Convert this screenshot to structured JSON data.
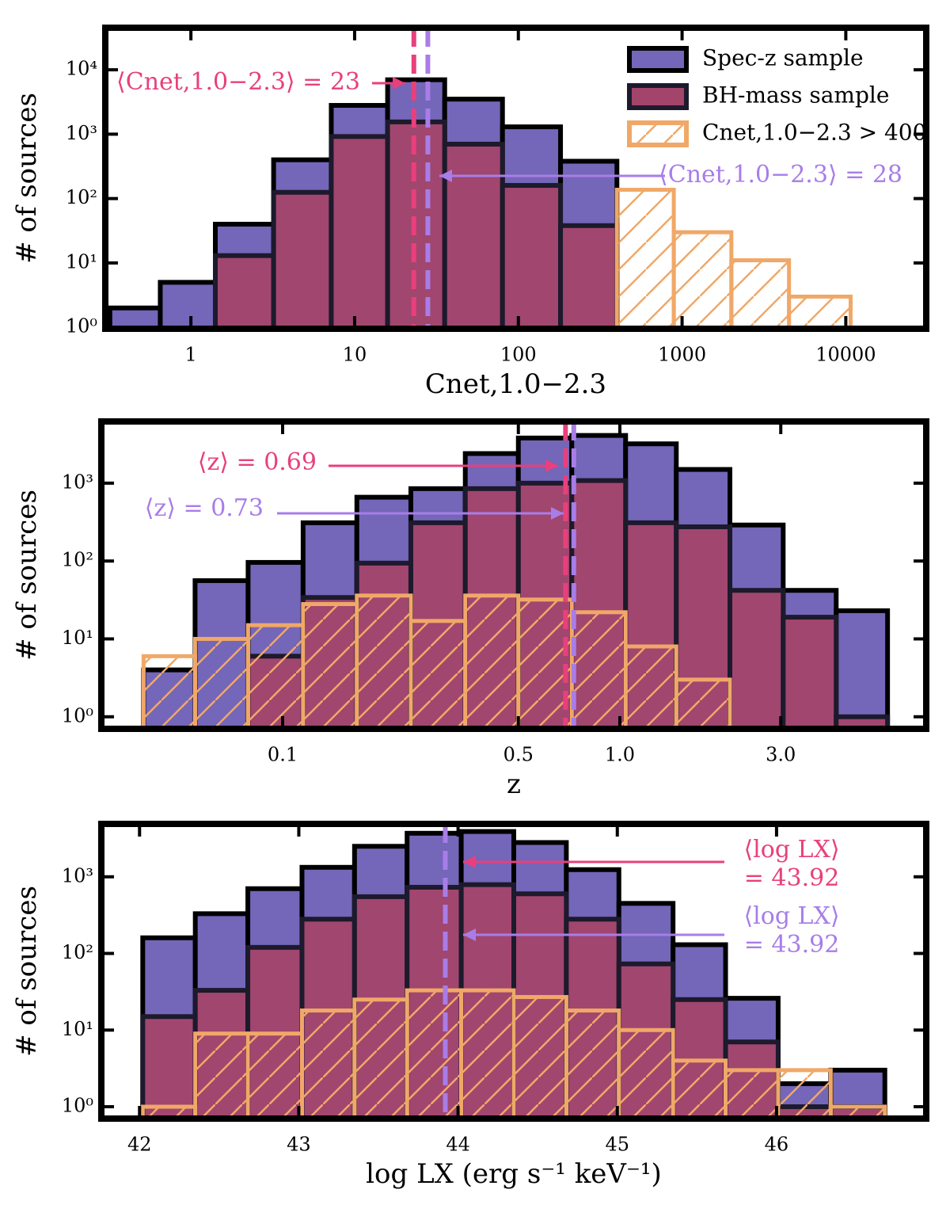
{
  "chart_data": [
    {
      "type": "histogram",
      "xlabel": "Cnet,1.0−2.3",
      "ylabel": "# of sources",
      "xscale": "log",
      "yscale": "log",
      "xlim": [
        0.3,
        31000
      ],
      "xticks": [
        1,
        10,
        100,
        1000,
        10000
      ],
      "ylim": [
        0.95,
        45000
      ],
      "yticks": [
        {
          "value": 1,
          "label": "10⁰"
        },
        {
          "value": 10,
          "label": "10¹"
        },
        {
          "value": 100,
          "label": "10²"
        },
        {
          "value": 1000,
          "label": "10³"
        },
        {
          "value": 10000,
          "label": "10⁴"
        }
      ],
      "legend": "upper right",
      "bins": [
        0.32,
        0.65,
        1.41,
        3.2,
        7.2,
        15.9,
        35.5,
        80,
        181,
        400,
        890,
        2000,
        4500,
        10700
      ],
      "series": [
        {
          "name": "Spec-z sample",
          "color": "#7466b8",
          "values": [
            2,
            5,
            40,
            400,
            2800,
            7000,
            3500,
            1300,
            380,
            0,
            0,
            0,
            0
          ]
        },
        {
          "name": "BH-mass sample",
          "color": "#a3446a",
          "values": [
            0,
            0,
            13,
            125,
            920,
            1550,
            700,
            160,
            38,
            0,
            0,
            0,
            0
          ]
        },
        {
          "name": "Cnet,1.0−2.3 > 400",
          "color": "#f0a868",
          "values": [
            0,
            0,
            0,
            0,
            0,
            0,
            0,
            0,
            0,
            137,
            30,
            11,
            3
          ]
        }
      ],
      "mean_lines": [
        {
          "value": 23,
          "color": "#e8407c",
          "label": [
            "⟨Cnet,1.0−2.3⟩ = 23"
          ]
        },
        {
          "value": 28,
          "color": "#a87de8",
          "label": [
            "⟨Cnet,1.0−2.3⟩ = 28"
          ]
        }
      ]
    },
    {
      "type": "histogram",
      "xlabel": "z",
      "ylabel": "# of sources",
      "xscale": "log",
      "yscale": "log",
      "xlim": [
        0.029,
        8.1
      ],
      "xticks": [
        0.1,
        0.5,
        {
          "value": 1,
          "label": "1.0"
        },
        {
          "value": 3,
          "label": "3.0"
        }
      ],
      "ylim": [
        0.7,
        6200
      ],
      "yticks": [
        {
          "value": 1,
          "label": "10⁰"
        },
        {
          "value": 10,
          "label": "10¹"
        },
        {
          "value": 100,
          "label": "10²"
        },
        {
          "value": 1000,
          "label": "10³"
        }
      ],
      "bins": [
        0.0387,
        0.055,
        0.079,
        0.115,
        0.166,
        0.24,
        0.348,
        0.5,
        0.72,
        1.04,
        1.47,
        2.12,
        3.05,
        4.38,
        6.22
      ],
      "series": [
        {
          "name": "Spec-z sample",
          "color": "#7466b8",
          "values": [
            4,
            56,
            96,
            310,
            660,
            850,
            2400,
            3800,
            4100,
            3200,
            1500,
            290,
            42,
            23
          ]
        },
        {
          "name": "BH-mass sample",
          "color": "#a3446a",
          "values": [
            0,
            0,
            6,
            34,
            94,
            310,
            850,
            1000,
            1080,
            310,
            275,
            42,
            19,
            1
          ]
        },
        {
          "name": "Cnet,1.0−2.3 > 400",
          "color": "#f0a868",
          "values": [
            6,
            10,
            15,
            28,
            36,
            17,
            36,
            32,
            22,
            8,
            3,
            0,
            0,
            0
          ]
        }
      ],
      "mean_lines": [
        {
          "value": 0.69,
          "color": "#e8407c",
          "label": [
            "⟨z⟩ = 0.69"
          ]
        },
        {
          "value": 0.73,
          "color": "#a87de8",
          "label": [
            "⟨z⟩ = 0.73"
          ]
        }
      ]
    },
    {
      "type": "histogram",
      "xlabel": "log LX (erg s⁻¹ keV⁻¹)",
      "ylabel": "# of sources",
      "xscale": "linear",
      "yscale": "log",
      "xlim": [
        41.76,
        46.94
      ],
      "xticks": [
        42,
        43,
        44,
        45,
        46
      ],
      "ylim": [
        0.7,
        4900
      ],
      "yticks": [
        {
          "value": 1,
          "label": "10⁰"
        },
        {
          "value": 10,
          "label": "10¹"
        },
        {
          "value": 100,
          "label": "10²"
        },
        {
          "value": 1000,
          "label": "10³"
        }
      ],
      "bins": [
        42.02,
        42.35,
        42.68,
        43.02,
        43.35,
        43.68,
        44.02,
        44.35,
        44.68,
        45.01,
        45.35,
        45.68,
        46.01,
        46.34,
        46.68
      ],
      "series": [
        {
          "name": "Spec-z sample",
          "color": "#7466b8",
          "values": [
            160,
            330,
            700,
            1330,
            2500,
            3700,
            3900,
            2800,
            1240,
            450,
            130,
            26,
            2,
            3
          ]
        },
        {
          "name": "BH-mass sample",
          "color": "#a3446a",
          "values": [
            15,
            33,
            120,
            280,
            550,
            730,
            790,
            600,
            280,
            73,
            25,
            7,
            1,
            1
          ]
        },
        {
          "name": "Cnet,1.0−2.3 > 400",
          "color": "#f0a868",
          "values": [
            1,
            9,
            9,
            18,
            25,
            33,
            33,
            27,
            18,
            10,
            4,
            3,
            3,
            1
          ]
        }
      ],
      "mean_lines": [
        {
          "value": 43.92,
          "color": "#e8407c",
          "label": [
            "⟨log LX⟩",
            "= 43.92"
          ]
        },
        {
          "value": 43.92,
          "color": "#a87de8",
          "label": [
            "⟨log LX⟩",
            "= 43.92"
          ]
        }
      ]
    }
  ]
}
